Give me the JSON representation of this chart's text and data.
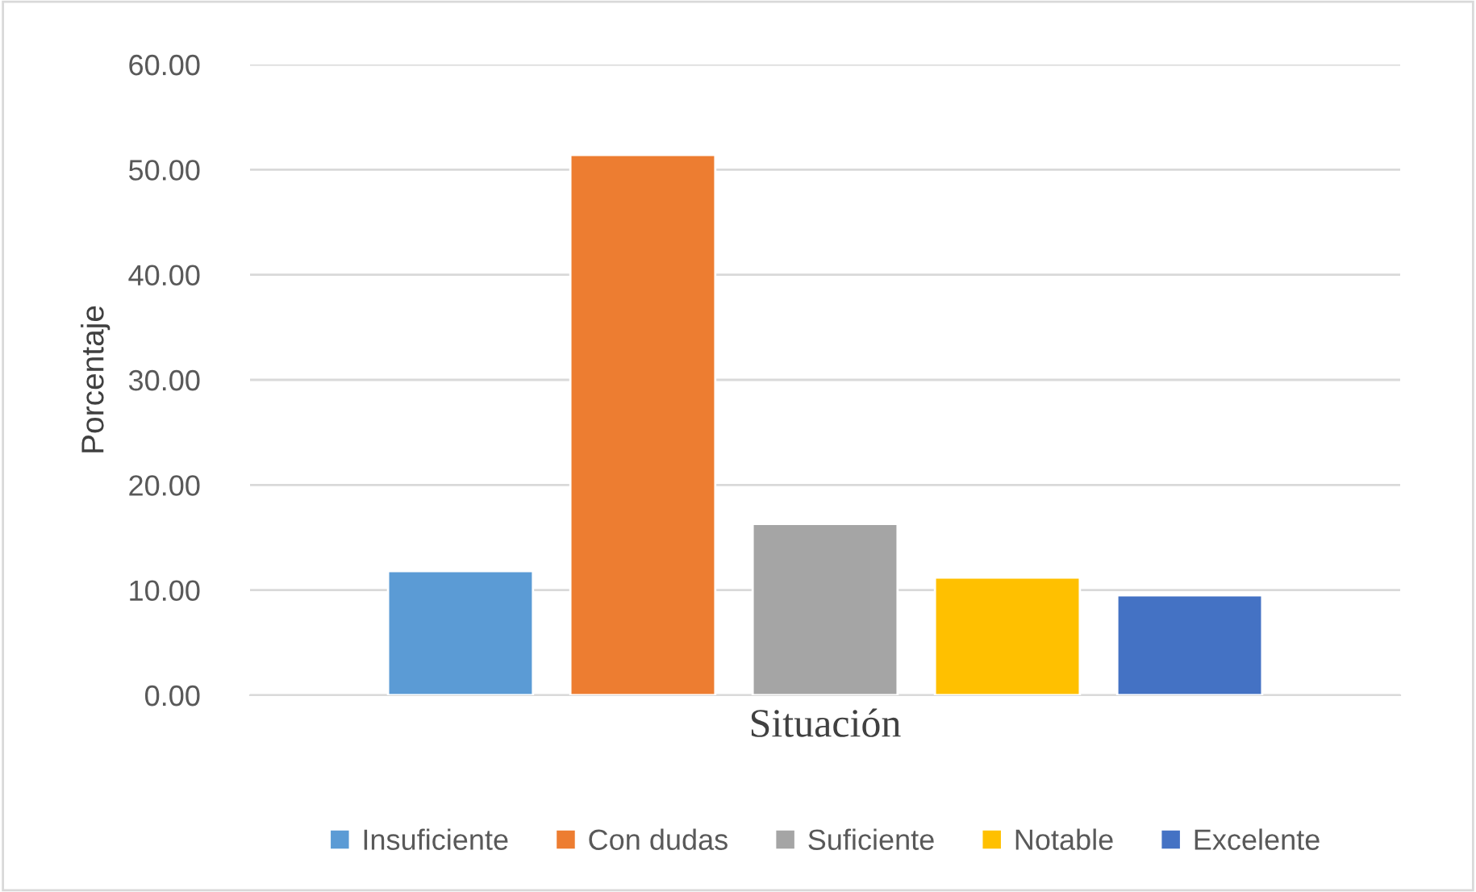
{
  "chart_data": {
    "type": "bar",
    "ylabel": "Porcentaje",
    "categories": [
      "Situación"
    ],
    "series": [
      {
        "name": "Insuficiente",
        "color": "#5b9bd5",
        "values": [
          11.8
        ]
      },
      {
        "name": "Con dudas",
        "color": "#ed7d31",
        "values": [
          51.4
        ]
      },
      {
        "name": "Suficiente",
        "color": "#a5a5a5",
        "values": [
          16.3
        ]
      },
      {
        "name": "Notable",
        "color": "#ffc000",
        "values": [
          11.2
        ]
      },
      {
        "name": "Excelente",
        "color": "#4472c4",
        "values": [
          9.5
        ]
      }
    ],
    "ylim": [
      0,
      60
    ],
    "yticks": [
      {
        "value": 0,
        "label": "0.00"
      },
      {
        "value": 10,
        "label": "10.00"
      },
      {
        "value": 20,
        "label": "20.00"
      },
      {
        "value": 30,
        "label": "30.00"
      },
      {
        "value": 40,
        "label": "40.00"
      },
      {
        "value": 50,
        "label": "50.00"
      },
      {
        "value": 60,
        "label": "60.00"
      }
    ],
    "grid": "y",
    "legend": "bottom"
  }
}
